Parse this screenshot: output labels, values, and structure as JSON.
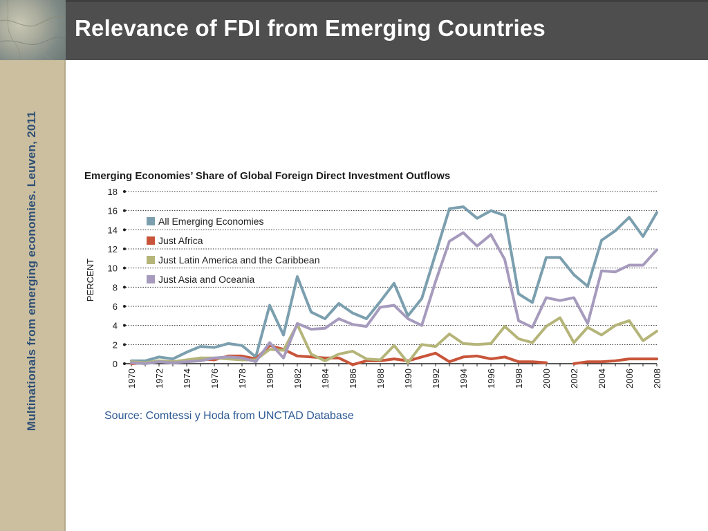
{
  "slide": {
    "title": "Relevance of FDI from Emerging Countries",
    "side_caption": "Multinationals from emerging economies. Leuven, 2011",
    "source": "Source: Comtessi y Hoda from UNCTAD Database",
    "colors": {
      "title_bar": "#4e4e4e",
      "side_band": "#cbbfa0",
      "side_text": "#2f4f74",
      "source_text": "#2e5a93"
    }
  },
  "chart_data": {
    "type": "line",
    "title": "Emerging Economies’ Share of Global Foreign Direct Investment Outflows",
    "ylabel": "PERCENT",
    "xlabel": "",
    "ylim": [
      0,
      18
    ],
    "yticks": [
      0,
      2,
      4,
      6,
      8,
      10,
      12,
      14,
      16,
      18
    ],
    "xticks": [
      1970,
      1972,
      1974,
      1976,
      1978,
      1980,
      1982,
      1984,
      1986,
      1988,
      1990,
      1992,
      1994,
      1996,
      1998,
      2000,
      2002,
      2004,
      2006,
      2008
    ],
    "grid": "horizontal dotted",
    "legend_position": "top-left",
    "x": [
      1970,
      1971,
      1972,
      1973,
      1974,
      1975,
      1976,
      1977,
      1978,
      1979,
      1980,
      1981,
      1982,
      1983,
      1984,
      1985,
      1986,
      1987,
      1988,
      1989,
      1990,
      1991,
      1992,
      1993,
      1994,
      1995,
      1996,
      1997,
      1998,
      1999,
      2000,
      2001,
      2002,
      2003,
      2004,
      2005,
      2006,
      2007,
      2008
    ],
    "series": [
      {
        "name": "All Emerging Economies",
        "color": "#7b9fae",
        "values": [
          0.3,
          0.3,
          0.7,
          0.5,
          1.2,
          1.8,
          1.7,
          2.1,
          1.9,
          0.7,
          6.1,
          3.0,
          9.1,
          5.4,
          4.7,
          6.3,
          5.3,
          4.7,
          6.5,
          8.4,
          5.0,
          6.8,
          11.5,
          16.2,
          16.4,
          15.2,
          16.0,
          15.5,
          7.3,
          6.4,
          11.1,
          11.1,
          9.3,
          8.1,
          12.9,
          13.9,
          15.3,
          13.3,
          15.8
        ]
      },
      {
        "name": "Just Africa",
        "color": "#c8553a",
        "values": [
          0.0,
          0.1,
          0.2,
          0.2,
          0.3,
          0.5,
          0.4,
          0.8,
          0.8,
          0.5,
          1.9,
          1.5,
          0.8,
          0.7,
          0.6,
          0.6,
          -0.1,
          0.3,
          0.3,
          0.5,
          0.3,
          0.7,
          1.1,
          0.2,
          0.7,
          0.8,
          0.5,
          0.7,
          0.2,
          0.2,
          0.1,
          null,
          0.0,
          0.2,
          0.2,
          0.3,
          0.5,
          0.5,
          0.5
        ]
      },
      {
        "name": "Just Latin America and the Caribbean",
        "color": "#b5b57a",
        "values": [
          0.2,
          0.1,
          0.3,
          0.2,
          0.4,
          0.6,
          0.6,
          0.5,
          0.4,
          0.4,
          1.5,
          1.4,
          4.1,
          1.0,
          0.3,
          1.0,
          1.3,
          0.5,
          0.4,
          1.9,
          0.1,
          2.0,
          1.8,
          3.1,
          2.1,
          2.0,
          2.1,
          3.9,
          2.6,
          2.2,
          3.9,
          4.8,
          2.2,
          3.8,
          3.0,
          4.0,
          4.5,
          2.4,
          3.4
        ]
      },
      {
        "name": "Just Asia and Oceania",
        "color": "#a69bbd",
        "values": [
          0.1,
          0.0,
          0.2,
          0.1,
          0.2,
          0.3,
          0.6,
          0.7,
          0.6,
          0.2,
          2.2,
          0.6,
          4.2,
          3.6,
          3.7,
          4.7,
          4.1,
          3.9,
          5.9,
          6.1,
          4.7,
          4.0,
          8.6,
          12.8,
          13.7,
          12.3,
          13.5,
          10.9,
          4.5,
          3.8,
          6.9,
          6.6,
          6.9,
          4.2,
          9.7,
          9.6,
          10.3,
          10.3,
          11.9
        ]
      }
    ]
  }
}
